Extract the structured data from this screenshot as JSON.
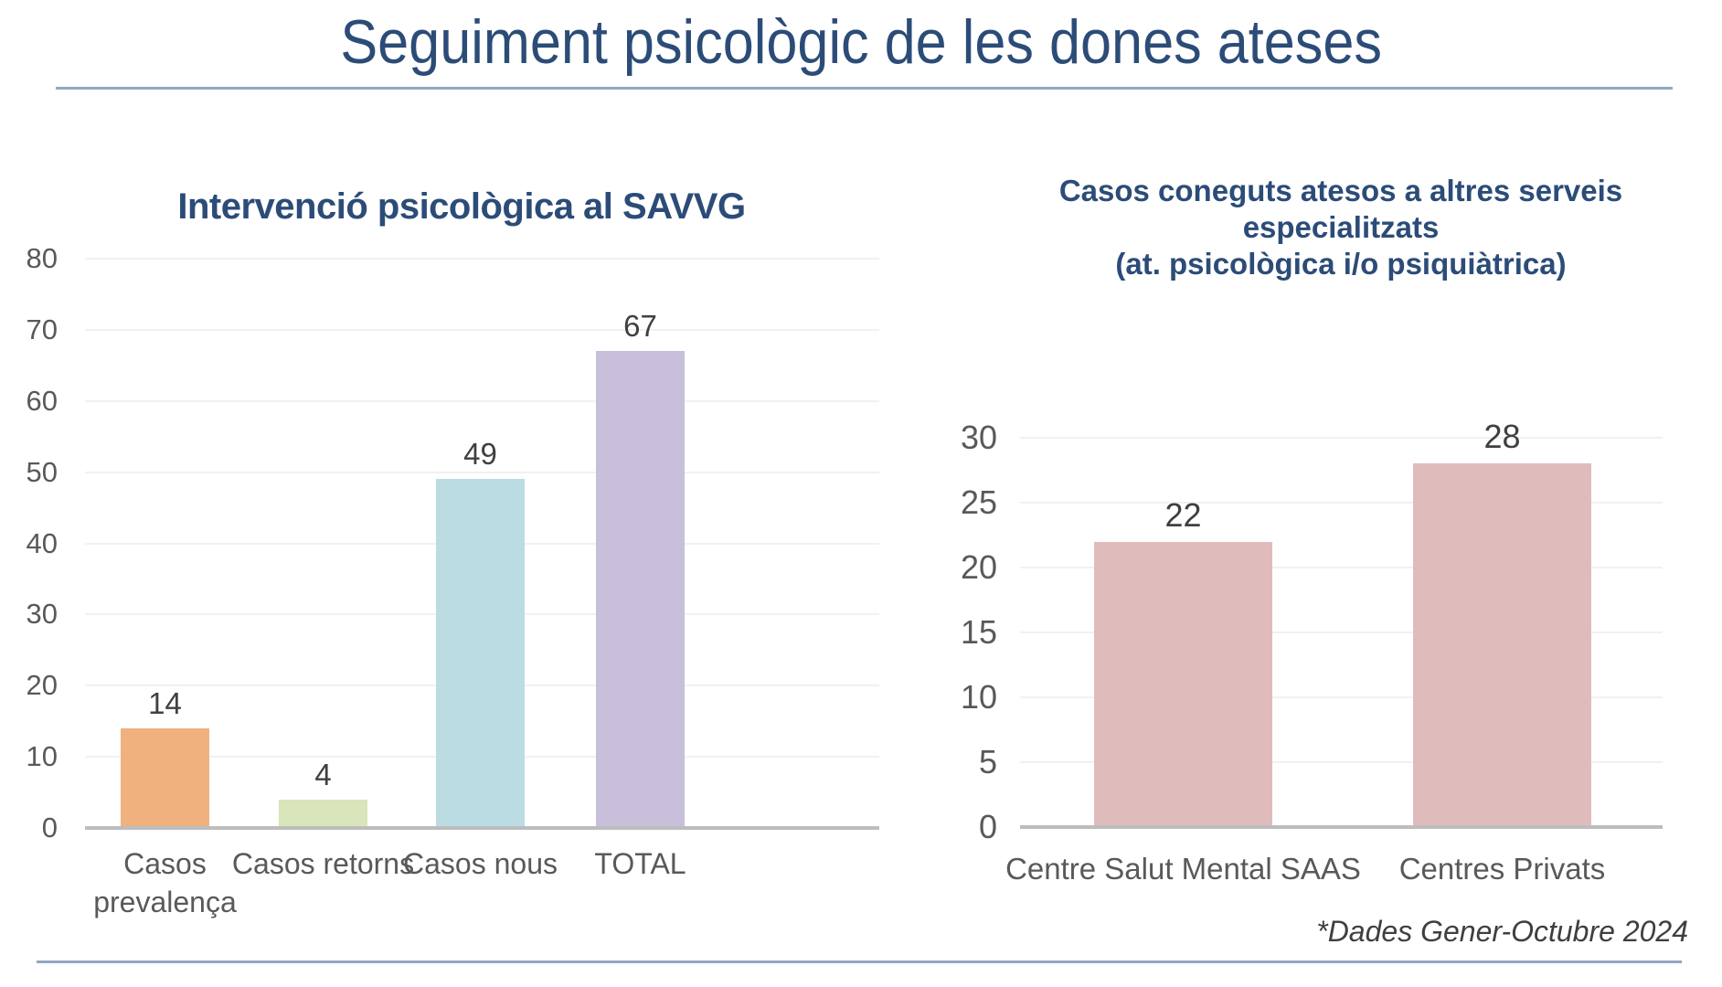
{
  "slide": {
    "title": "Seguiment psicològic de les dones ateses",
    "footnote": "*Dades  Gener-Octubre 2024"
  },
  "colors": {
    "title_navy": "#2C4C78",
    "rule_blue": "#93A6C3",
    "axis_gray": "#BDBDBD",
    "gridline_gray": "#F1F1F1",
    "tick_label_gray": "#595959",
    "data_label_gray": "#404040",
    "bar_orange": "#F0B17E",
    "bar_green": "#D9E5BA",
    "bar_blue": "#BCDCE4",
    "bar_purple": "#C8BFDB",
    "bar_pink": "#DFBCBB"
  },
  "chart_data": [
    {
      "id": "left",
      "type": "bar",
      "title": "Intervenció psicològica al SAVVG",
      "categories": [
        "Casos prevalença",
        "Casos retorns",
        "Casos nous",
        "TOTAL"
      ],
      "values": [
        14,
        4,
        49,
        67
      ],
      "data_labels": [
        "14",
        "4",
        "49",
        "67"
      ],
      "bar_colors": [
        "#F0B17E",
        "#D9E5BA",
        "#BCDCE4",
        "#C8BFDB"
      ],
      "ylim": [
        0,
        80
      ],
      "ytick_step": 10,
      "yticks": [
        0,
        10,
        20,
        30,
        40,
        50,
        60,
        70,
        80
      ],
      "grid": true,
      "legend": "none"
    },
    {
      "id": "right",
      "type": "bar",
      "title": "Casos coneguts atesos a altres serveis especialitzats (at. psicològica i/o psiquiàtrica)",
      "title_lines": [
        "Casos coneguts atesos a altres serveis",
        "especialitzats",
        "(at. psicològica i/o psiquiàtrica)"
      ],
      "categories": [
        "Centre Salut Mental SAAS",
        "Centres Privats"
      ],
      "values": [
        22,
        28
      ],
      "data_labels": [
        "22",
        "28"
      ],
      "bar_colors": [
        "#DFBCBB",
        "#DFBCBB"
      ],
      "ylim": [
        0,
        30
      ],
      "ytick_step": 5,
      "yticks": [
        0,
        5,
        10,
        15,
        20,
        25,
        30
      ],
      "grid": true,
      "legend": "none"
    }
  ]
}
